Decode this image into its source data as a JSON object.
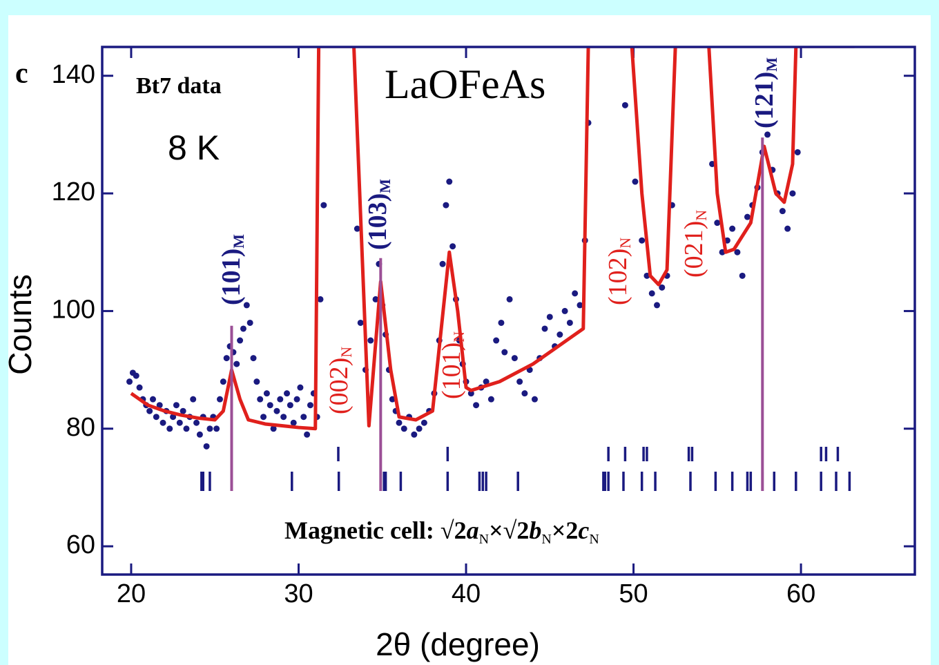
{
  "chart_data": {
    "type": "scatter",
    "panel_label": "c",
    "title": "LaOFeAs",
    "subtitle": "Bt7 data",
    "temperature": "8 K",
    "xlabel": "2θ (degree)",
    "ylabel": "Counts",
    "xlim": [
      18.27,
      66.8
    ],
    "ylim": [
      55.2,
      144.9
    ],
    "xticks": [
      20,
      30,
      40,
      50,
      60
    ],
    "yticks": [
      60,
      80,
      100,
      120,
      140
    ],
    "frame_color": "#1a1a80",
    "series": [
      {
        "name": "data",
        "color": "#1a1a80",
        "x": [
          19.9,
          20.1,
          20.3,
          20.5,
          20.7,
          20.9,
          21.1,
          21.3,
          21.5,
          21.7,
          21.9,
          22.1,
          22.3,
          22.5,
          22.7,
          22.9,
          23.1,
          23.3,
          23.5,
          23.7,
          23.9,
          24.1,
          24.3,
          24.5,
          24.7,
          24.9,
          25.1,
          25.3,
          25.5,
          25.7,
          25.9,
          26.1,
          26.3,
          26.5,
          26.7,
          26.9,
          27.1,
          27.3,
          27.5,
          27.7,
          27.9,
          28.1,
          28.3,
          28.5,
          28.7,
          28.9,
          29.1,
          29.3,
          29.5,
          29.7,
          29.9,
          30.1,
          30.3,
          30.5,
          30.7,
          30.9,
          31.1,
          31.3,
          31.5,
          33.5,
          33.7,
          34,
          34.3,
          34.6,
          34.8,
          35.0,
          35.2,
          35.4,
          35.6,
          35.8,
          36.0,
          36.3,
          36.6,
          36.9,
          37.2,
          37.5,
          37.8,
          38.1,
          38.4,
          38.6,
          38.8,
          39.0,
          39.2,
          39.4,
          39.6,
          39.8,
          40.0,
          40.3,
          40.6,
          40.9,
          41.2,
          41.5,
          41.8,
          42.1,
          42.3,
          42.6,
          42.9,
          43.2,
          43.5,
          43.8,
          44.1,
          44.4,
          44.7,
          45.0,
          45.3,
          45.6,
          45.9,
          46.2,
          46.5,
          46.8,
          47.1,
          47.3,
          49.5,
          50.1,
          50.5,
          50.8,
          51.1,
          51.4,
          51.7,
          52.0,
          52.3,
          54.7,
          55.0,
          55.3,
          55.6,
          55.9,
          56.2,
          56.5,
          56.8,
          57.1,
          57.4,
          57.7,
          58.0,
          58.3,
          58.6,
          58.9,
          59.2,
          59.5,
          59.8
        ],
        "values": [
          88,
          89.5,
          89,
          87,
          85,
          84,
          83,
          85,
          82,
          84,
          81,
          83,
          80,
          82,
          84,
          81,
          83,
          80,
          82,
          85,
          81,
          79,
          82,
          77,
          80,
          82,
          80,
          85,
          88,
          92,
          94,
          93,
          91,
          95,
          97,
          101,
          98,
          92,
          88,
          85,
          82,
          86,
          84,
          80,
          83,
          85,
          82,
          86,
          84,
          81,
          85,
          87,
          82,
          79,
          84,
          86,
          82,
          102,
          118,
          114,
          98,
          90,
          95,
          102,
          108,
          101,
          96,
          90,
          85,
          83,
          81,
          80,
          82,
          79,
          80,
          81,
          83,
          86,
          95,
          108,
          118,
          122,
          111,
          102,
          95,
          91,
          88,
          86,
          84,
          87,
          88,
          85,
          95,
          98,
          93,
          102,
          92,
          88,
          86,
          90,
          85,
          92,
          97,
          99,
          94,
          96,
          100,
          98,
          103,
          101,
          112,
          132,
          135,
          122,
          112,
          106,
          103,
          101,
          104,
          106,
          118,
          125,
          115,
          110,
          112,
          114,
          110,
          106,
          116,
          118,
          121,
          127,
          130,
          124,
          120,
          117,
          114,
          120,
          127
        ]
      },
      {
        "name": "fit",
        "type": "line",
        "color": "#e0201c",
        "x": [
          20,
          21,
          22,
          23,
          24,
          25,
          25.5,
          26,
          26.5,
          27,
          28,
          29,
          30,
          31,
          31.2,
          32.5,
          33.3,
          34.2,
          34.9,
          35.5,
          36,
          37,
          38,
          39,
          39.5,
          40,
          40.3,
          42,
          44,
          46,
          47,
          47.3,
          49.9,
          50.5,
          51,
          51.5,
          52,
          52.5,
          54.5,
          55,
          55.5,
          56,
          57,
          57.8,
          58.5,
          59,
          59.5,
          59.7,
          63.2
        ],
        "values": [
          86,
          84,
          83,
          82.3,
          81.8,
          81.5,
          83,
          90,
          85,
          81.5,
          80.8,
          80.5,
          80.2,
          80,
          145,
          145,
          145,
          80.5,
          105,
          90,
          82,
          81.5,
          83,
          110,
          100,
          87,
          86.5,
          88,
          91,
          95,
          97,
          145,
          145,
          120,
          106,
          104.5,
          107,
          145,
          145,
          120,
          110,
          110.5,
          115,
          128,
          120,
          118.5,
          125,
          145,
          145
        ]
      },
      {
        "name": "magnetic peaks",
        "type": "stick",
        "color": "#9b4f96",
        "x": [
          26.0,
          34.9,
          57.7
        ],
        "values": [
          97.5,
          109,
          129.5
        ]
      },
      {
        "name": "nuclear reflections",
        "type": "bragg-ticks",
        "color": "#1a1a80",
        "x": [
          32.37,
          38.9,
          48.5,
          49.5,
          50.6,
          50.8,
          53.3,
          53.5,
          61.2,
          61.5,
          62.2
        ]
      },
      {
        "name": "magnetic reflections",
        "type": "bragg-ticks",
        "color": "#1a1a80",
        "x": [
          24.2,
          24.3,
          24.7,
          29.6,
          32.4,
          35.1,
          35.2,
          36.1,
          38.9,
          40.8,
          41.0,
          41.2,
          43.1,
          48.2,
          48.3,
          48.5,
          49.4,
          50.5,
          51.3,
          53.4,
          54.9,
          55.9,
          56.8,
          57.0,
          57.7,
          58.4,
          59.7,
          61.2,
          62.1,
          62.9
        ]
      }
    ],
    "peak_labels": [
      {
        "text": "(101)",
        "sub": "M",
        "color": "#1a1a80",
        "bold": true
      },
      {
        "text": "(103)",
        "sub": "M",
        "color": "#1a1a80",
        "bold": true
      },
      {
        "text": "(121)",
        "sub": "M",
        "color": "#1a1a80",
        "bold": true
      },
      {
        "text": "(002)",
        "sub": "N",
        "color": "#e0201c",
        "bold": false
      },
      {
        "text": "(101)",
        "sub": "N",
        "color": "#e0201c",
        "bold": false
      },
      {
        "text": "(102)",
        "sub": "N",
        "color": "#e0201c",
        "bold": false
      },
      {
        "text": "(021)",
        "sub": "N",
        "color": "#e0201c",
        "bold": false
      }
    ],
    "cell_label": [
      {
        "text": "Magnetic  cell: ",
        "style": "normal"
      },
      {
        "text": "√2",
        "style": "normal"
      },
      {
        "text": "a",
        "style": "italic"
      },
      {
        "text": "N",
        "style": "sub"
      },
      {
        "text": "×√2",
        "style": "normal"
      },
      {
        "text": "b",
        "style": "italic"
      },
      {
        "text": "N",
        "style": "sub"
      },
      {
        "text": "×2",
        "style": "normal"
      },
      {
        "text": "c",
        "style": "italic"
      },
      {
        "text": "N",
        "style": "sub"
      }
    ]
  }
}
